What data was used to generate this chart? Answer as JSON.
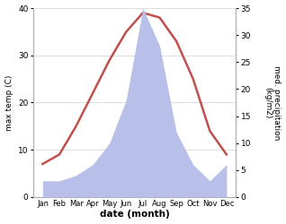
{
  "months": [
    "Jan",
    "Feb",
    "Mar",
    "Apr",
    "May",
    "Jun",
    "Jul",
    "Aug",
    "Sep",
    "Oct",
    "Nov",
    "Dec"
  ],
  "temperature": [
    7,
    9,
    15,
    22,
    29,
    35,
    39,
    38,
    33,
    25,
    14,
    9
  ],
  "precipitation": [
    3,
    3,
    4,
    6,
    10,
    18,
    35,
    28,
    12,
    6,
    3,
    6
  ],
  "temp_ylim": [
    0,
    40
  ],
  "precip_ylim": [
    0,
    35
  ],
  "temp_yticks": [
    0,
    10,
    20,
    30,
    40
  ],
  "precip_yticks": [
    0,
    5,
    10,
    15,
    20,
    25,
    30,
    35
  ],
  "temp_color": "#c0504d",
  "precip_fill_color": "#b8bfe8",
  "xlabel": "date (month)",
  "ylabel_left": "max temp (C)",
  "ylabel_right": "med. precipitation\n(kg/m2)",
  "background_color": "#ffffff",
  "grid_color": "#d8d8d8",
  "fig_width": 3.18,
  "fig_height": 2.5,
  "dpi": 100
}
